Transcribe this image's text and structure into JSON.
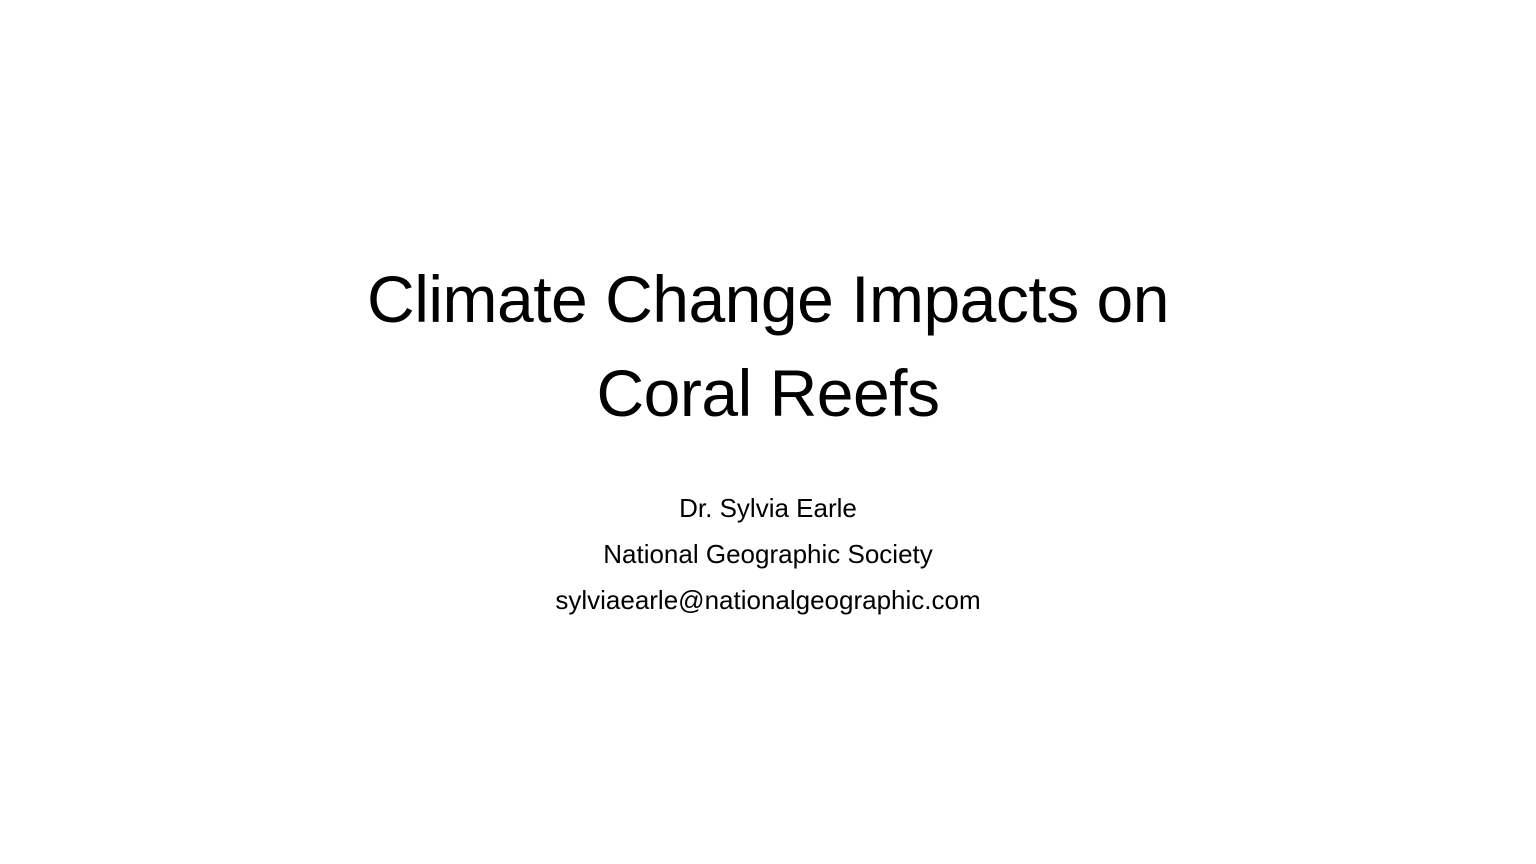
{
  "slide": {
    "title_lines": [
      "Climate Change Impacts on",
      "Coral Reefs"
    ],
    "subtitle": {
      "author": "Dr. Sylvia Earle",
      "organization": "National Geographic Society",
      "email": "sylviaearle@nationalgeographic.com"
    },
    "colors": {
      "background": "#ffffff",
      "text": "#000000"
    }
  }
}
